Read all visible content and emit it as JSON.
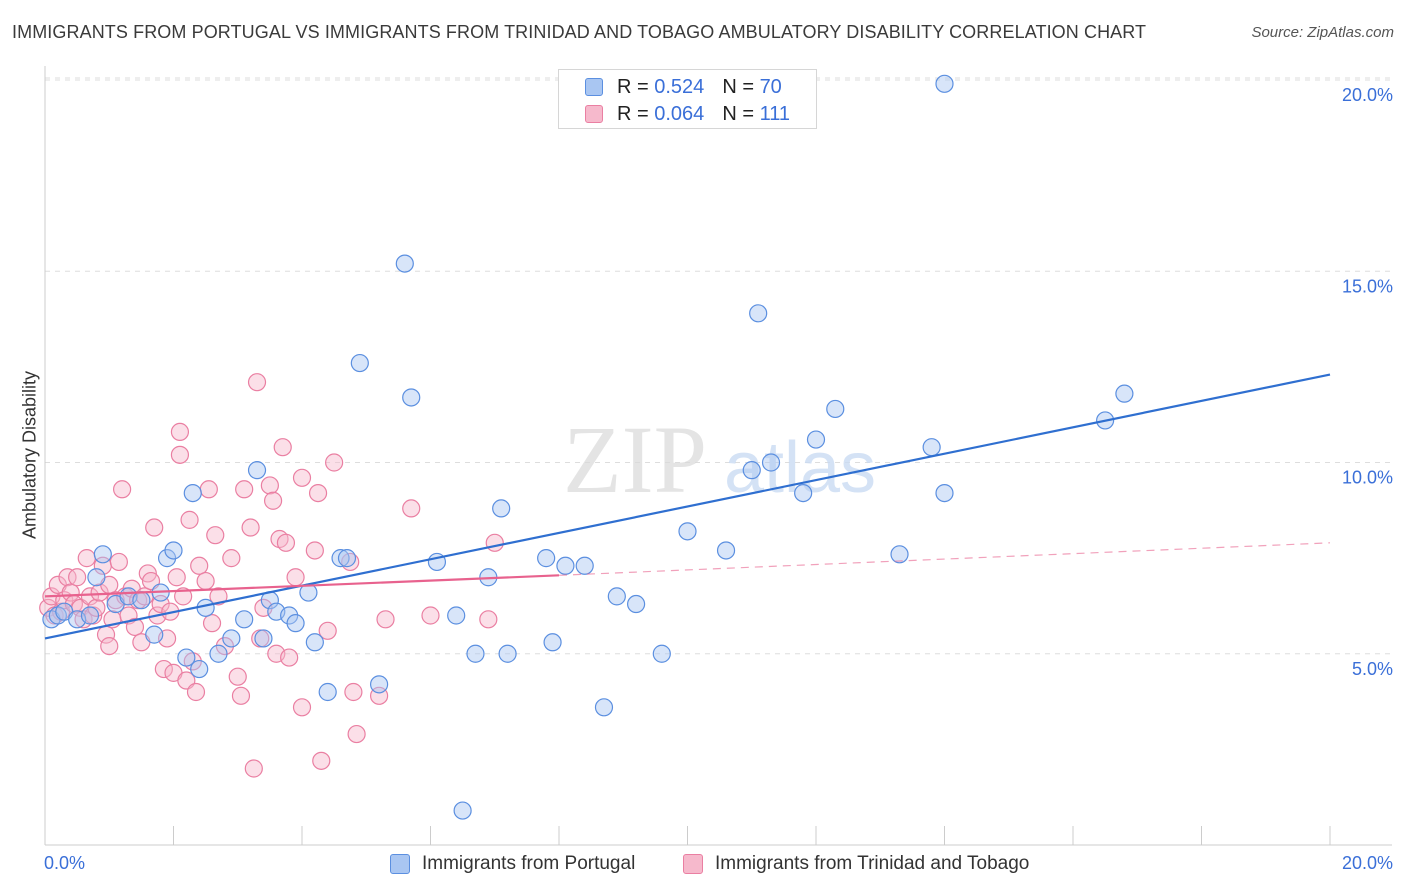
{
  "header": {
    "title": "IMMIGRANTS FROM PORTUGAL VS IMMIGRANTS FROM TRINIDAD AND TOBAGO AMBULATORY DISABILITY CORRELATION CHART",
    "source": "Source: ZipAtlas.com"
  },
  "watermark": {
    "zip": "ZIP",
    "atlas": "atlas"
  },
  "colors": {
    "blue_fill": "#a9c6f2",
    "blue_stroke": "#5b8fe0",
    "blue_line": "#2f6fd0",
    "pink_fill": "#f6b9cc",
    "pink_stroke": "#ea7fa2",
    "pink_line": "#e8628e",
    "grid": "#dddddd",
    "tick_label": "#3a6fd8"
  },
  "legend_top": {
    "rows": [
      {
        "r_label": "R =",
        "r_value": "0.524",
        "n_label": "N =",
        "n_value": "70"
      },
      {
        "r_label": "R =",
        "r_value": "0.064",
        "n_label": "N =",
        "n_value": "111"
      }
    ]
  },
  "legend_bottom": {
    "items": [
      {
        "label": "Immigrants from Portugal"
      },
      {
        "label": "Immigrants from Trinidad and Tobago"
      }
    ]
  },
  "chart_data": {
    "type": "scatter",
    "title": "IMMIGRANTS FROM PORTUGAL VS IMMIGRANTS FROM TRINIDAD AND TOBAGO AMBULATORY DISABILITY CORRELATION CHART",
    "xlabel": "",
    "ylabel": "Ambulatory Disability",
    "xlim": [
      0,
      20
    ],
    "ylim": [
      0,
      20.5
    ],
    "x_tick_labels": [
      "0.0%",
      "20.0%"
    ],
    "y_ticks": [
      5,
      10,
      15,
      20
    ],
    "y_tick_labels": [
      "5.0%",
      "10.0%",
      "15.0%",
      "20.0%"
    ],
    "grid": true,
    "legend_position": "top-center",
    "series": [
      {
        "name": "Immigrants from Portugal",
        "color": "#5b8fe0",
        "trend": {
          "x": [
            0,
            20
          ],
          "y": [
            5.4,
            12.3
          ],
          "style": "solid"
        },
        "points": [
          [
            0.1,
            5.9
          ],
          [
            0.2,
            6.0
          ],
          [
            0.3,
            6.1
          ],
          [
            0.5,
            5.9
          ],
          [
            0.7,
            6.0
          ],
          [
            0.8,
            7.0
          ],
          [
            0.9,
            7.6
          ],
          [
            1.1,
            6.3
          ],
          [
            1.3,
            6.5
          ],
          [
            1.5,
            6.4
          ],
          [
            1.7,
            5.5
          ],
          [
            1.8,
            6.6
          ],
          [
            1.9,
            7.5
          ],
          [
            2.0,
            7.7
          ],
          [
            2.2,
            4.9
          ],
          [
            2.3,
            9.2
          ],
          [
            2.4,
            4.6
          ],
          [
            2.5,
            6.2
          ],
          [
            2.7,
            5.0
          ],
          [
            2.9,
            5.4
          ],
          [
            3.1,
            5.9
          ],
          [
            3.3,
            9.8
          ],
          [
            3.4,
            5.4
          ],
          [
            3.5,
            6.4
          ],
          [
            3.6,
            6.1
          ],
          [
            3.8,
            6.0
          ],
          [
            3.9,
            5.8
          ],
          [
            4.1,
            6.6
          ],
          [
            4.2,
            5.3
          ],
          [
            4.4,
            4.0
          ],
          [
            4.6,
            7.5
          ],
          [
            4.7,
            7.5
          ],
          [
            4.9,
            12.6
          ],
          [
            5.2,
            4.2
          ],
          [
            5.6,
            15.2
          ],
          [
            5.7,
            11.7
          ],
          [
            6.1,
            7.4
          ],
          [
            6.4,
            6.0
          ],
          [
            6.5,
            0.9
          ],
          [
            6.7,
            5.0
          ],
          [
            6.9,
            7.0
          ],
          [
            7.1,
            8.8
          ],
          [
            7.2,
            5.0
          ],
          [
            7.8,
            7.5
          ],
          [
            7.9,
            5.3
          ],
          [
            8.1,
            7.3
          ],
          [
            8.4,
            7.3
          ],
          [
            8.7,
            3.6
          ],
          [
            8.9,
            6.5
          ],
          [
            9.2,
            6.3
          ],
          [
            9.6,
            5.0
          ],
          [
            10.0,
            8.2
          ],
          [
            10.6,
            7.7
          ],
          [
            11.0,
            9.8
          ],
          [
            11.1,
            13.9
          ],
          [
            11.3,
            10.0
          ],
          [
            11.8,
            9.2
          ],
          [
            12.0,
            10.6
          ],
          [
            12.3,
            11.4
          ],
          [
            13.3,
            7.6
          ],
          [
            13.8,
            10.4
          ],
          [
            14.0,
            9.2
          ],
          [
            14.0,
            19.9
          ],
          [
            16.5,
            11.1
          ],
          [
            16.8,
            11.8
          ]
        ]
      },
      {
        "name": "Immigrants from Trinidad and Tobago",
        "color": "#ea7fa2",
        "trend": {
          "x": [
            0,
            8.0,
            20
          ],
          "y": [
            6.5,
            7.05,
            7.9
          ],
          "style": "solid-then-dashed"
        },
        "points": [
          [
            0.05,
            6.2
          ],
          [
            0.1,
            6.5
          ],
          [
            0.15,
            6.0
          ],
          [
            0.2,
            6.8
          ],
          [
            0.25,
            6.1
          ],
          [
            0.3,
            6.4
          ],
          [
            0.35,
            7.0
          ],
          [
            0.4,
            6.6
          ],
          [
            0.45,
            6.3
          ],
          [
            0.5,
            7.0
          ],
          [
            0.55,
            6.2
          ],
          [
            0.6,
            5.9
          ],
          [
            0.65,
            7.5
          ],
          [
            0.7,
            6.5
          ],
          [
            0.75,
            6.0
          ],
          [
            0.8,
            6.2
          ],
          [
            0.85,
            6.6
          ],
          [
            0.9,
            7.3
          ],
          [
            0.95,
            5.5
          ],
          [
            1.0,
            6.8
          ],
          [
            1.0,
            5.2
          ],
          [
            1.05,
            5.9
          ],
          [
            1.1,
            6.4
          ],
          [
            1.15,
            7.4
          ],
          [
            1.2,
            9.3
          ],
          [
            1.25,
            6.5
          ],
          [
            1.3,
            6.0
          ],
          [
            1.35,
            6.7
          ],
          [
            1.4,
            5.7
          ],
          [
            1.45,
            6.4
          ],
          [
            1.5,
            5.3
          ],
          [
            1.55,
            6.5
          ],
          [
            1.6,
            7.1
          ],
          [
            1.65,
            6.9
          ],
          [
            1.7,
            8.3
          ],
          [
            1.75,
            6.0
          ],
          [
            1.8,
            6.3
          ],
          [
            1.85,
            4.6
          ],
          [
            1.9,
            5.4
          ],
          [
            1.95,
            6.1
          ],
          [
            2.0,
            4.5
          ],
          [
            2.05,
            7.0
          ],
          [
            2.1,
            10.2
          ],
          [
            2.1,
            10.8
          ],
          [
            2.15,
            6.5
          ],
          [
            2.2,
            4.3
          ],
          [
            2.25,
            8.5
          ],
          [
            2.3,
            4.8
          ],
          [
            2.35,
            4.0
          ],
          [
            2.4,
            7.3
          ],
          [
            2.5,
            6.9
          ],
          [
            2.55,
            9.3
          ],
          [
            2.6,
            5.8
          ],
          [
            2.65,
            8.1
          ],
          [
            2.7,
            6.5
          ],
          [
            2.8,
            5.2
          ],
          [
            2.9,
            7.5
          ],
          [
            3.0,
            4.4
          ],
          [
            3.05,
            3.9
          ],
          [
            3.1,
            9.3
          ],
          [
            3.2,
            8.3
          ],
          [
            3.25,
            2.0
          ],
          [
            3.3,
            12.1
          ],
          [
            3.35,
            5.4
          ],
          [
            3.4,
            6.2
          ],
          [
            3.5,
            9.4
          ],
          [
            3.55,
            9.0
          ],
          [
            3.6,
            5.0
          ],
          [
            3.65,
            8.0
          ],
          [
            3.7,
            10.4
          ],
          [
            3.75,
            7.9
          ],
          [
            3.8,
            4.9
          ],
          [
            3.9,
            7.0
          ],
          [
            4.0,
            3.6
          ],
          [
            4.0,
            9.6
          ],
          [
            4.2,
            7.7
          ],
          [
            4.25,
            9.2
          ],
          [
            4.3,
            2.2
          ],
          [
            4.4,
            5.6
          ],
          [
            4.5,
            10.0
          ],
          [
            4.75,
            7.4
          ],
          [
            4.8,
            4.0
          ],
          [
            4.85,
            2.9
          ],
          [
            5.2,
            3.9
          ],
          [
            5.3,
            5.9
          ],
          [
            5.7,
            8.8
          ],
          [
            6.0,
            6.0
          ],
          [
            6.9,
            5.9
          ],
          [
            7.0,
            7.9
          ]
        ]
      }
    ]
  }
}
